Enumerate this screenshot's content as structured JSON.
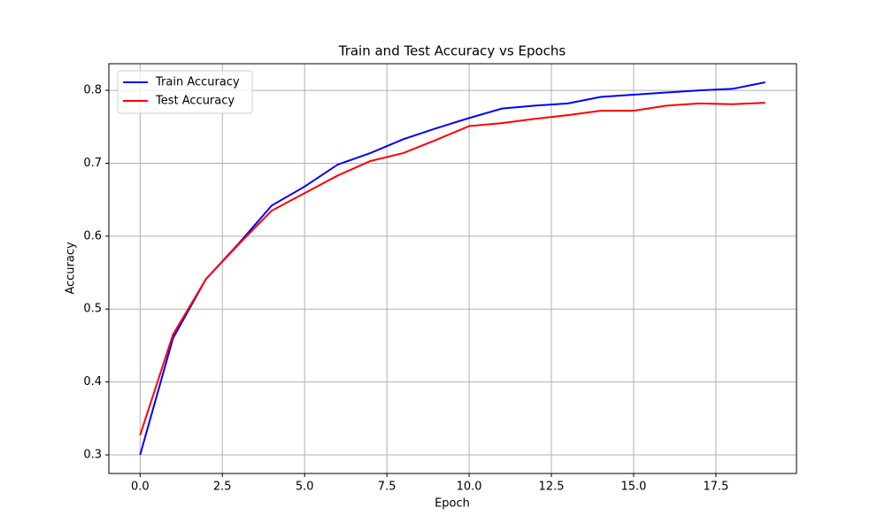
{
  "chart_data": {
    "type": "line",
    "title": "Train and Test Accuracy vs Epochs",
    "x_label": "Epoch",
    "y_label": "Accuracy",
    "x": [
      0,
      1,
      2,
      3,
      4,
      5,
      6,
      7,
      8,
      9,
      10,
      11,
      12,
      13,
      14,
      15,
      16,
      17,
      18,
      19
    ],
    "series": [
      {
        "name": "Train Accuracy",
        "color": "#0000ff",
        "values": [
          0.3,
          0.46,
          0.541,
          0.59,
          0.642,
          0.668,
          0.698,
          0.714,
          0.733,
          0.748,
          0.762,
          0.775,
          0.779,
          0.782,
          0.791,
          0.794,
          0.797,
          0.8,
          0.802,
          0.811
        ]
      },
      {
        "name": "Test Accuracy",
        "color": "#ff0000",
        "values": [
          0.327,
          0.465,
          0.541,
          0.589,
          0.635,
          0.659,
          0.683,
          0.703,
          0.714,
          0.732,
          0.751,
          0.755,
          0.761,
          0.766,
          0.772,
          0.772,
          0.779,
          0.782,
          0.781,
          0.783
        ]
      }
    ],
    "xlim": [
      -0.95,
      19.95
    ],
    "xticks": [
      {
        "value": 0,
        "label": "0.0"
      },
      2.5,
      {
        "value": 5,
        "label": "5.0"
      },
      7.5,
      {
        "value": 10,
        "label": "10.0"
      },
      12.5,
      {
        "value": 15,
        "label": "15.0"
      },
      17.5
    ],
    "ylim": [
      0.2745,
      0.8365
    ],
    "yticks": [
      0.3,
      0.4,
      0.5,
      0.6,
      0.7,
      0.8
    ],
    "grid": true,
    "legend": "upper-left"
  }
}
